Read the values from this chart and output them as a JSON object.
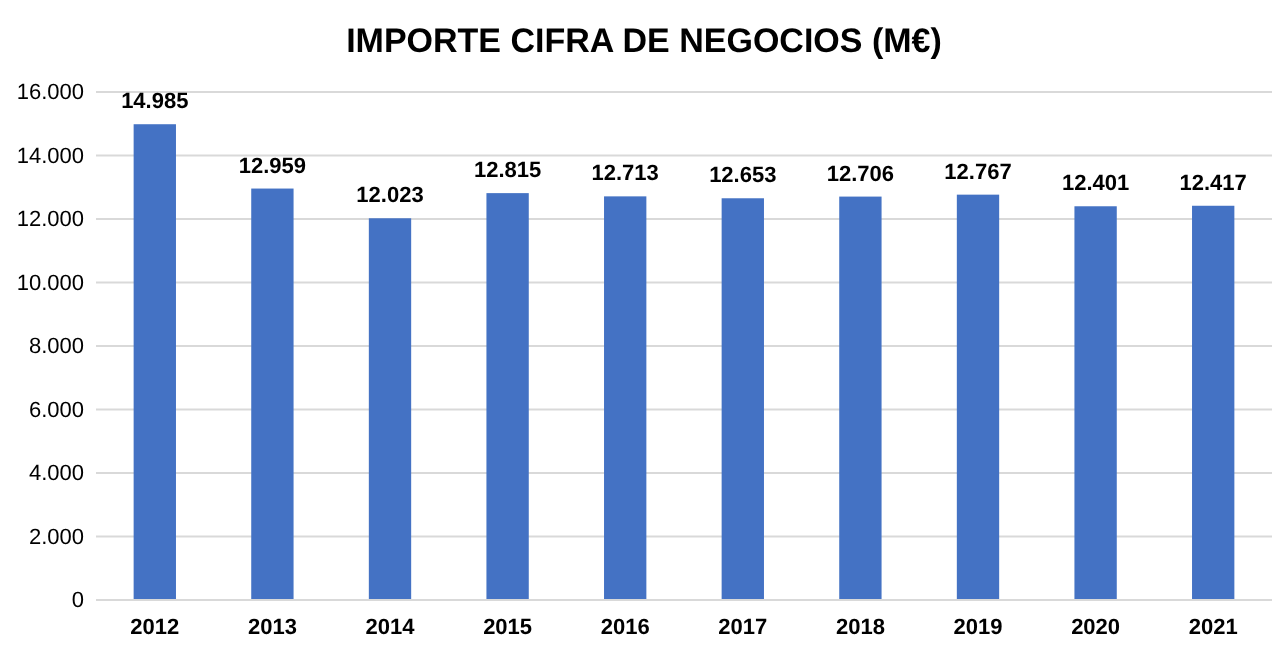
{
  "chart_data": {
    "type": "bar",
    "title": "IMPORTE CIFRA DE NEGOCIOS (M€)",
    "categories": [
      "2012",
      "2013",
      "2014",
      "2015",
      "2016",
      "2017",
      "2018",
      "2019",
      "2020",
      "2021"
    ],
    "values": [
      14985,
      12959,
      12023,
      12815,
      12713,
      12653,
      12706,
      12767,
      12401,
      12417
    ],
    "value_labels": [
      "14.985",
      "12.959",
      "12.023",
      "12.815",
      "12.713",
      "12.653",
      "12.706",
      "12.767",
      "12.401",
      "12.417"
    ],
    "color": "#4472c4",
    "ylim": [
      0,
      16000
    ],
    "yticks": [
      {
        "value": 0,
        "label": "0"
      },
      {
        "value": 2000,
        "label": "2.000"
      },
      {
        "value": 4000,
        "label": "4.000"
      },
      {
        "value": 6000,
        "label": "6.000"
      },
      {
        "value": 8000,
        "label": "8.000"
      },
      {
        "value": 10000,
        "label": "10.000"
      },
      {
        "value": 12000,
        "label": "12.000"
      },
      {
        "value": 14000,
        "label": "14.000"
      },
      {
        "value": 16000,
        "label": "16.000"
      }
    ],
    "grid": "y"
  }
}
